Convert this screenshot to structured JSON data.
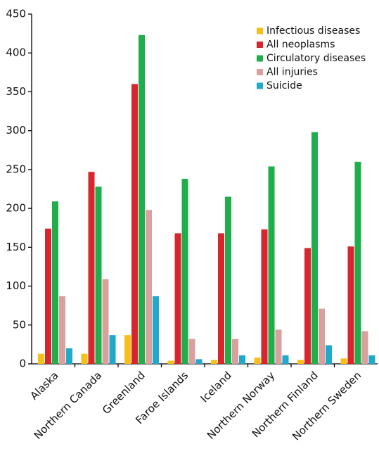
{
  "chart_data": {
    "type": "bar",
    "categories": [
      "Alaska",
      "Northern Canada",
      "Greenland",
      "Faroe Islands",
      "Iceland",
      "Northern Norway",
      "Northern Finland",
      "Northern Sweden"
    ],
    "series": [
      {
        "name": "Infectious diseases",
        "color": "#f5c018",
        "values": [
          13,
          13,
          37,
          4,
          5,
          8,
          5,
          7
        ]
      },
      {
        "name": "All neoplasms",
        "color": "#d7262e",
        "values": [
          174,
          247,
          360,
          168,
          168,
          173,
          149,
          151
        ]
      },
      {
        "name": "Circulatory diseases",
        "color": "#1fae4b",
        "values": [
          209,
          228,
          423,
          238,
          215,
          254,
          298,
          260
        ]
      },
      {
        "name": "All injuries",
        "color": "#d9a09e",
        "values": [
          87,
          109,
          198,
          32,
          32,
          44,
          71,
          42
        ]
      },
      {
        "name": "Suicide",
        "color": "#21a9cb",
        "values": [
          20,
          37,
          87,
          6,
          11,
          11,
          24,
          11
        ]
      }
    ],
    "ylim": [
      0,
      450
    ],
    "yticks": [
      0,
      50,
      100,
      150,
      200,
      250,
      300,
      350,
      400,
      450
    ],
    "legend": "upper right"
  }
}
